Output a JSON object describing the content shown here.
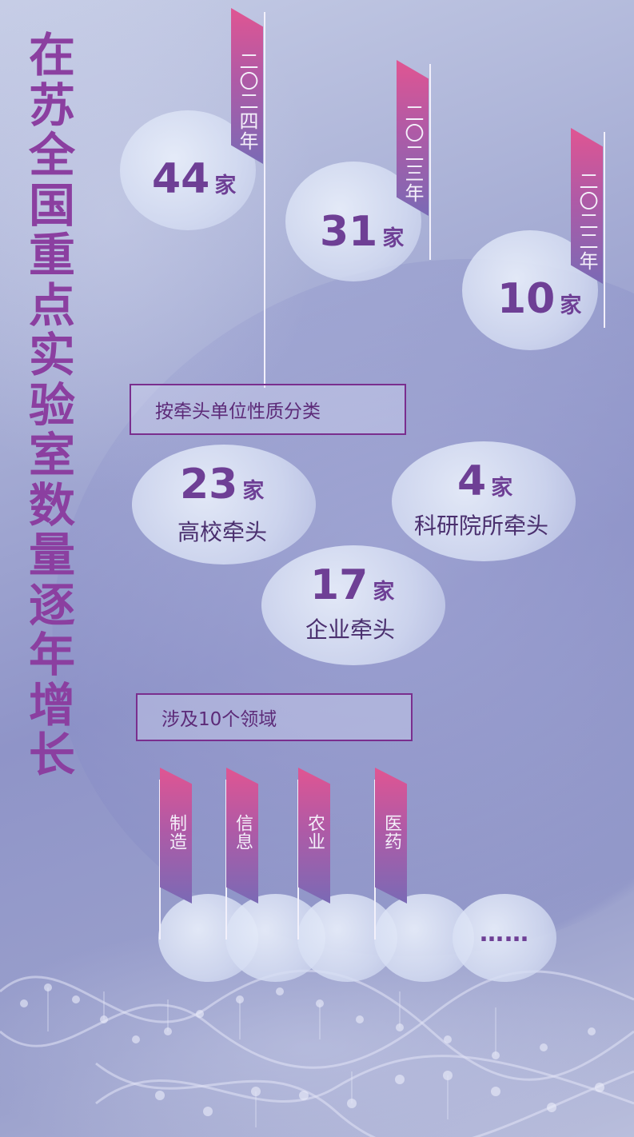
{
  "title": [
    "在",
    "苏",
    "全",
    "国",
    "重",
    "点",
    "实",
    "验",
    "室",
    "数",
    "量",
    "逐",
    "年",
    "增",
    "长"
  ],
  "years": [
    {
      "year": "二〇二四年",
      "count": "44",
      "unit": "家"
    },
    {
      "year": "二〇二三年",
      "count": "31",
      "unit": "家"
    },
    {
      "year": "二〇二二年",
      "count": "10",
      "unit": "家"
    }
  ],
  "by_lead": {
    "heading": "按牵头单位性质分类",
    "items": [
      {
        "count": "23",
        "unit": "家",
        "label": "高校牵头"
      },
      {
        "count": "4",
        "unit": "家",
        "label": "科研院所牵头"
      },
      {
        "count": "17",
        "unit": "家",
        "label": "企业牵头"
      }
    ]
  },
  "fields": {
    "heading": "涉及10个领域",
    "items": [
      "制造",
      "信息",
      "农业",
      "医药"
    ],
    "more": "……"
  },
  "colors": {
    "accent": "#8b3fa0",
    "number": "#6e3f95",
    "flag_top": "#e05592",
    "flag_bottom": "#7a6ab5"
  }
}
